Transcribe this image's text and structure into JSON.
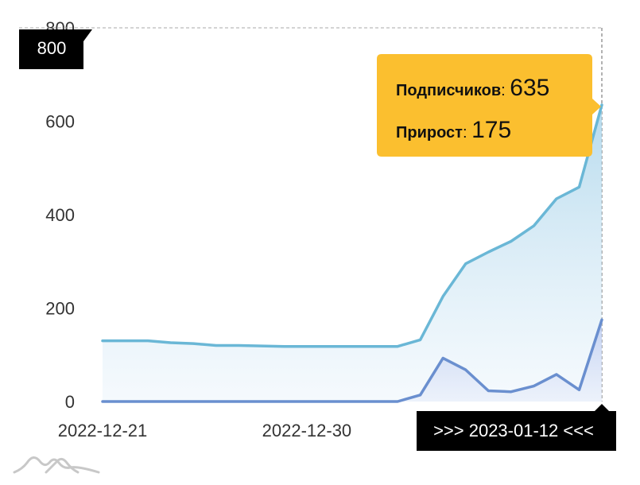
{
  "chart_data": {
    "type": "area",
    "x": [
      "2022-12-21",
      "2022-12-22",
      "2022-12-23",
      "2022-12-24",
      "2022-12-25",
      "2022-12-26",
      "2022-12-27",
      "2022-12-28",
      "2022-12-29",
      "2022-12-30",
      "2022-12-31",
      "2023-01-01",
      "2023-01-02",
      "2023-01-03",
      "2023-01-04",
      "2023-01-05",
      "2023-01-06",
      "2023-01-07",
      "2023-01-08",
      "2023-01-09",
      "2023-01-10",
      "2023-01-11",
      "2023-01-12"
    ],
    "series": [
      {
        "name": "Подписчиков",
        "color": "#6ab7d6",
        "values": [
          130,
          130,
          130,
          126,
          124,
          120,
          120,
          119,
          118,
          118,
          118,
          118,
          118,
          118,
          132,
          225,
          295,
          320,
          343,
          376,
          434,
          459,
          635
        ]
      },
      {
        "name": "Прирост",
        "color": "#6a8fcf",
        "values": [
          0,
          0,
          0,
          0,
          0,
          0,
          0,
          0,
          0,
          0,
          0,
          0,
          0,
          0,
          14,
          93,
          68,
          23,
          21,
          33,
          58,
          25,
          175
        ]
      }
    ],
    "xticks": [
      "2022-12-21",
      "2022-12-30"
    ],
    "yticks": [
      0,
      200,
      400,
      600,
      800
    ],
    "ylim": [
      0,
      800
    ],
    "grid": false,
    "y_max_badge": "800",
    "tooltip": {
      "x": "2023-01-12",
      "date_badge": ">>> 2023-01-12 <<<",
      "rows": [
        {
          "label": "Подписчиков",
          "value": "635"
        },
        {
          "label": "Прирост",
          "value": "175"
        }
      ],
      "background": "#fbbf2f"
    }
  },
  "logo": {
    "name": "mountains-logo"
  }
}
